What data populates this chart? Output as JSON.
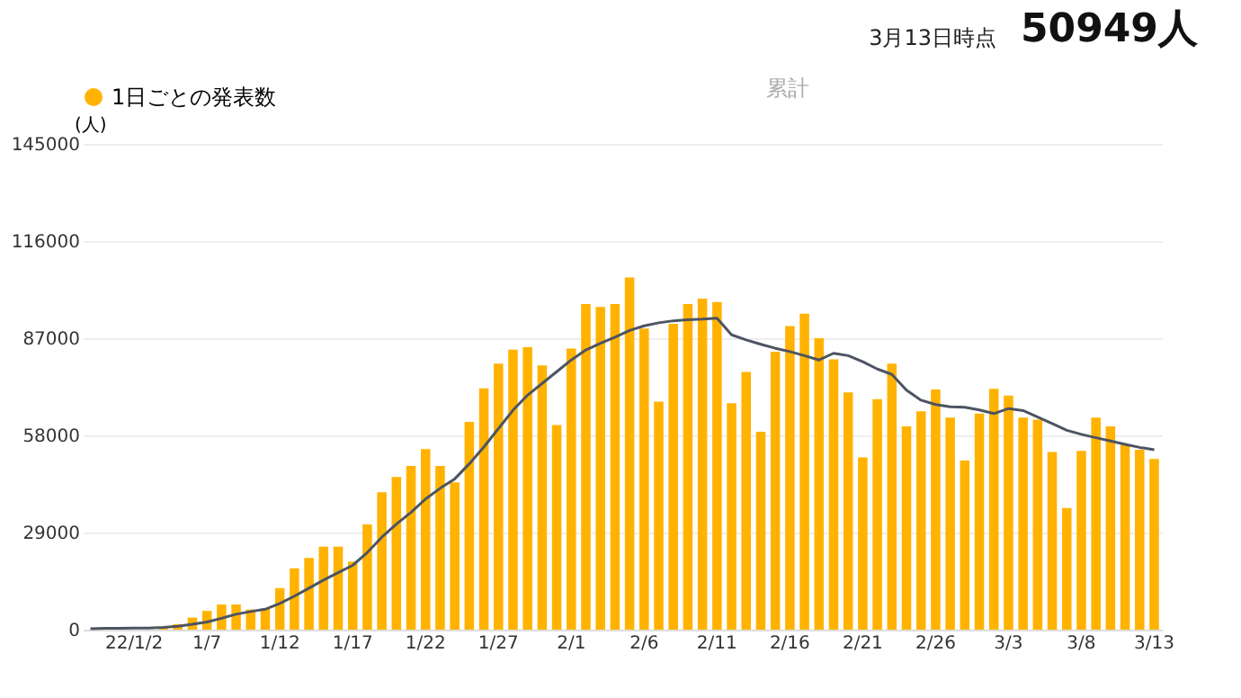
{
  "chart_data": {
    "type": "bar",
    "ylabel": "(人)",
    "categories": [
      null,
      null,
      null,
      "22/1/2",
      null,
      null,
      null,
      null,
      "1/7",
      null,
      null,
      null,
      null,
      "1/12",
      null,
      null,
      null,
      null,
      "1/17",
      null,
      null,
      null,
      null,
      "1/22",
      null,
      null,
      null,
      null,
      "1/27",
      null,
      null,
      null,
      null,
      "2/1",
      null,
      null,
      null,
      null,
      "2/6",
      null,
      null,
      null,
      null,
      "2/11",
      null,
      null,
      null,
      null,
      "2/16",
      null,
      null,
      null,
      null,
      "2/21",
      null,
      null,
      null,
      null,
      "2/26",
      null,
      null,
      null,
      null,
      "3/3",
      null,
      null,
      null,
      null,
      "3/8",
      null,
      null,
      null,
      null,
      "3/13"
    ],
    "series": [
      {
        "name": "1日ごとの発表数",
        "color": "#ffb300",
        "values": [
          null,
          null,
          null,
          null,
          null,
          500,
          1600,
          3600,
          5600,
          7500,
          7500,
          6000,
          6300,
          12400,
          18300,
          21400,
          24800,
          24800,
          20300,
          31400,
          41000,
          45600,
          48900,
          53900,
          48900,
          44000,
          62000,
          72000,
          79400,
          83600,
          84300,
          78900,
          61100,
          83900,
          97200,
          96300,
          97200,
          105100,
          89900,
          68100,
          91300,
          97200,
          98800,
          97800,
          67600,
          76900,
          59100,
          83000,
          90600,
          94300,
          87000,
          80700,
          70800,
          51400,
          68800,
          79400,
          60700,
          65200,
          71700,
          63300,
          50500,
          64500,
          71900,
          69900,
          63300,
          62700,
          53000,
          36300,
          53400,
          63300,
          60700,
          55200,
          53700,
          50949
        ]
      },
      {
        "type": "line",
        "color": "#4d5461",
        "values": [
          300,
          400,
          400,
          500,
          500,
          700,
          1000,
          1600,
          2300,
          3400,
          4600,
          5400,
          6100,
          7800,
          10000,
          12400,
          14800,
          17000,
          19200,
          23000,
          27600,
          31500,
          35000,
          39000,
          42200,
          45000,
          49500,
          54500,
          60000,
          65500,
          70000,
          73500,
          77000,
          80500,
          83500,
          85500,
          87300,
          89300,
          90700,
          91600,
          92200,
          92500,
          92700,
          93000,
          88000,
          86500,
          85200,
          84000,
          83000,
          81800,
          80500,
          82500,
          81800,
          80000,
          77800,
          76200,
          71500,
          68500,
          67200,
          66500,
          66400,
          65600,
          64500,
          66000,
          65400,
          63500,
          61500,
          59500,
          58300,
          57300,
          56300,
          55300,
          54400,
          53700
        ]
      }
    ],
    "ylim": [
      0,
      145000
    ],
    "yticks": [
      0,
      29000,
      58000,
      87000,
      116000,
      145000
    ],
    "grid": "y",
    "legend": "top",
    "line_style": "solid",
    "marker": "none",
    "annotations": [
      "3月13日時点",
      "50949人",
      "累計"
    ]
  }
}
